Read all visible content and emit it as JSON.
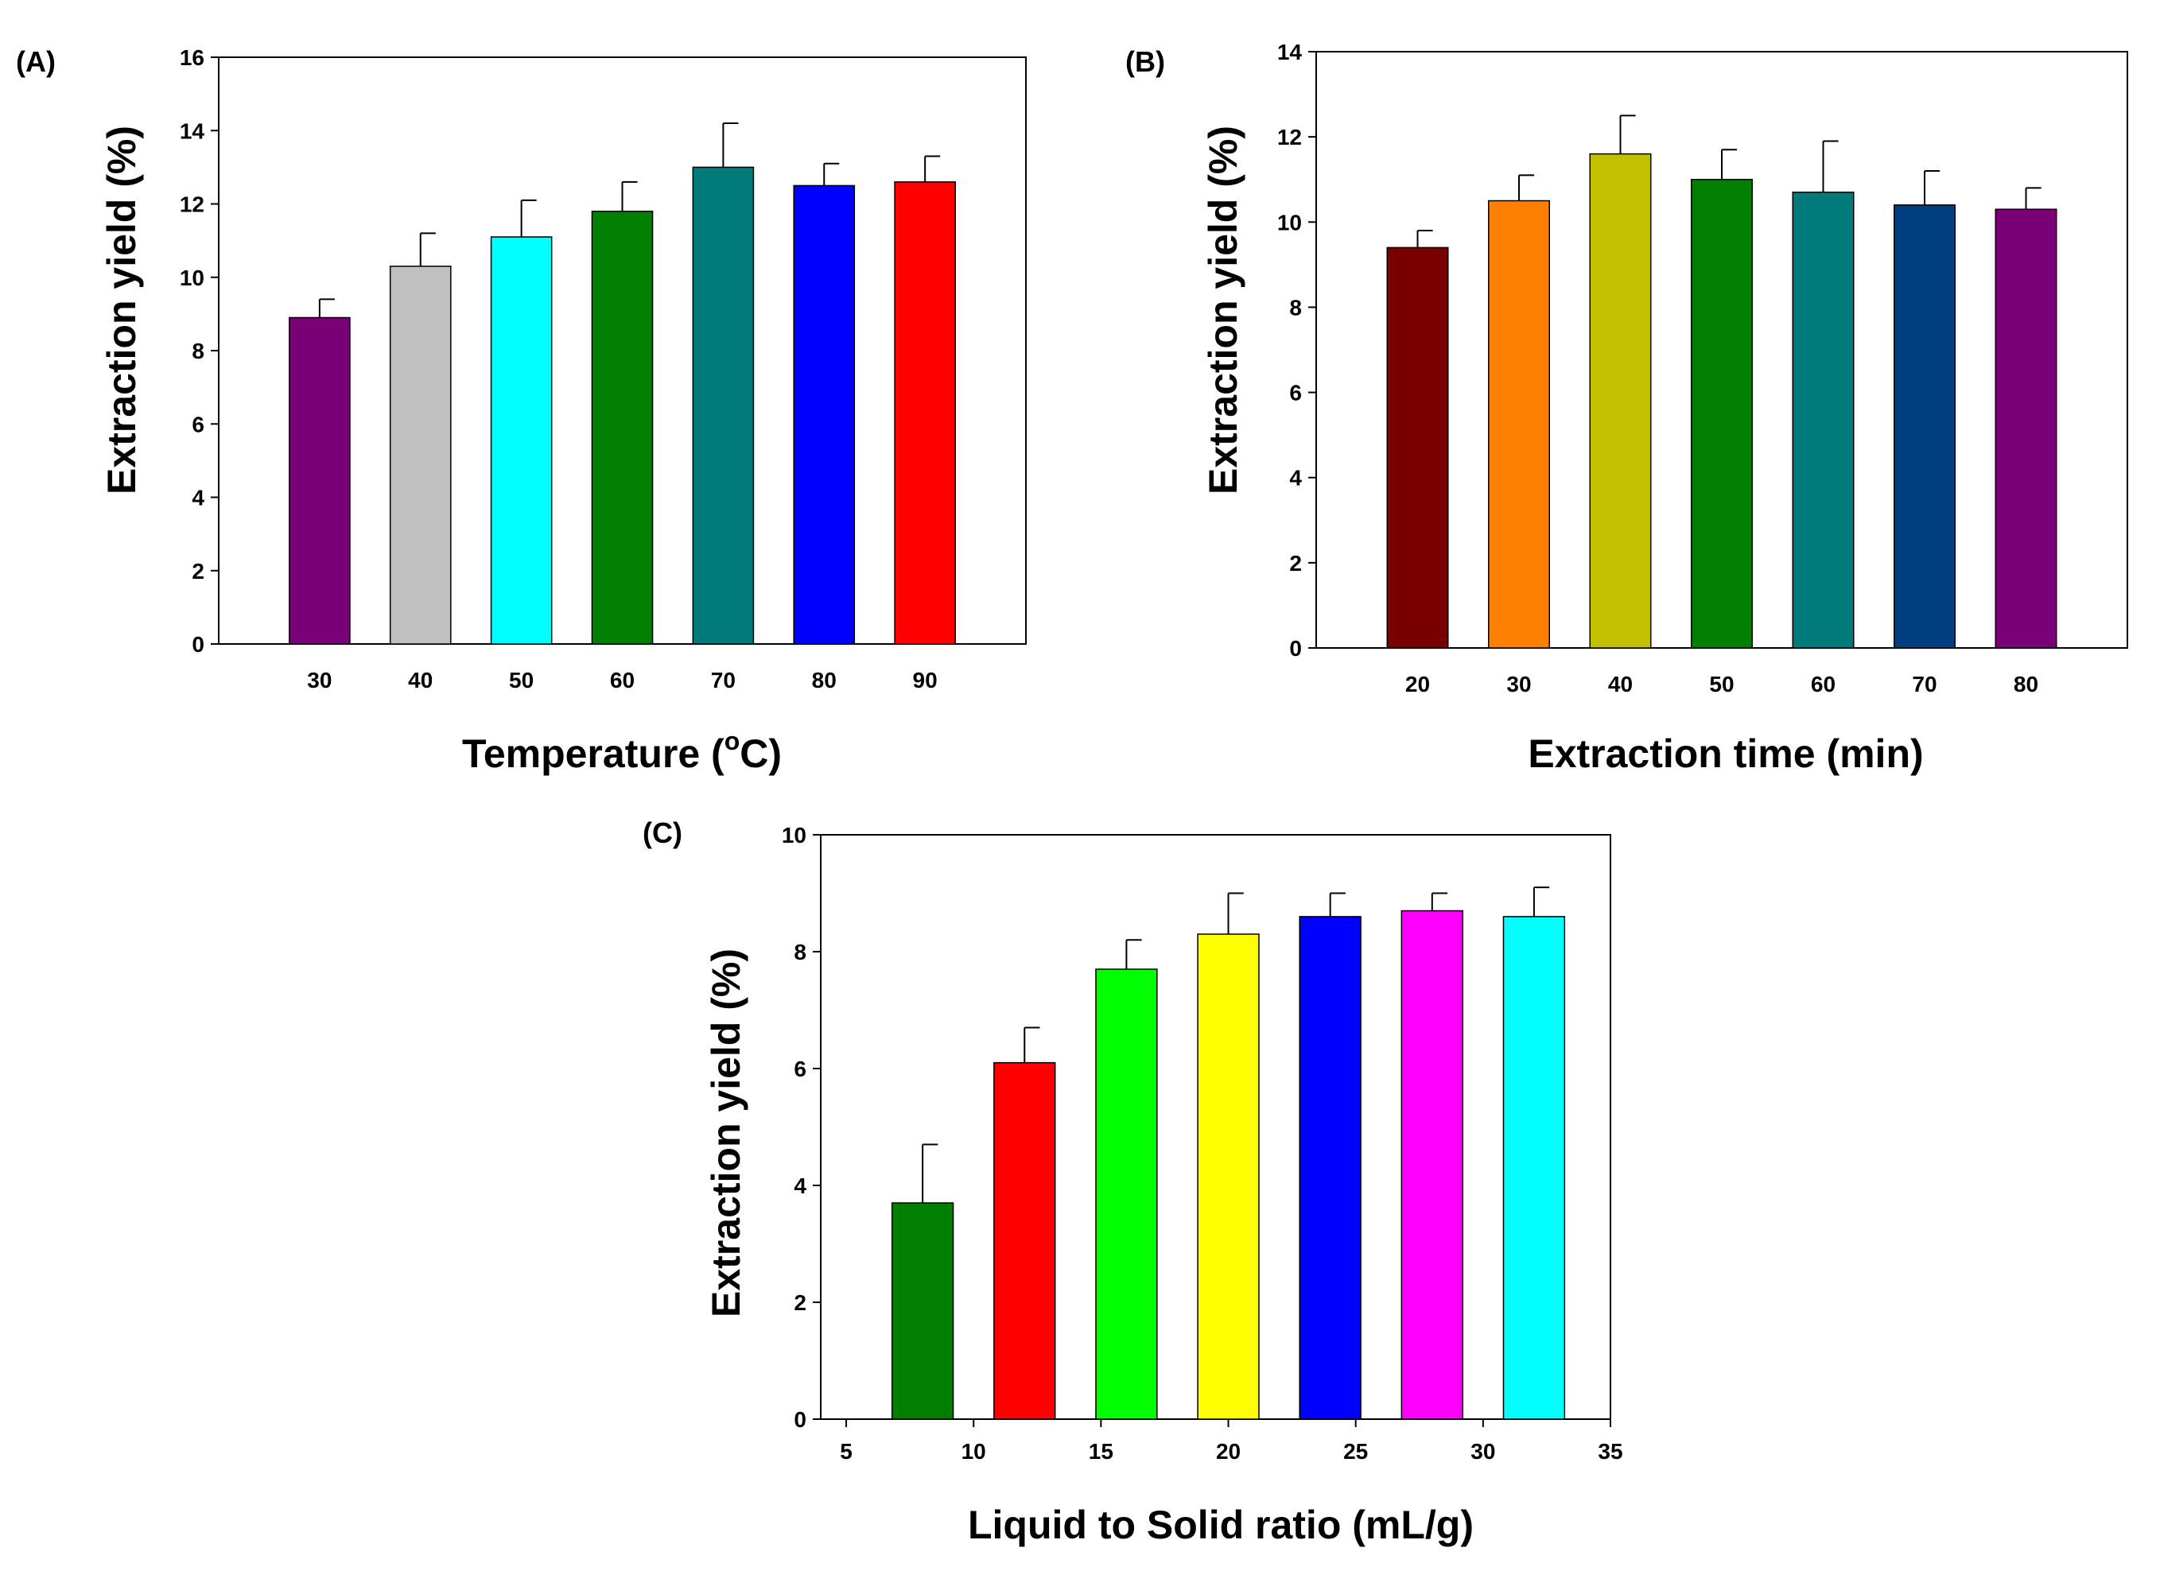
{
  "chart_data": [
    {
      "panel": "(A)",
      "type": "bar",
      "categories": [
        "30",
        "40",
        "50",
        "60",
        "70",
        "80",
        "90"
      ],
      "values": [
        8.9,
        10.3,
        11.1,
        11.8,
        13.0,
        12.5,
        12.6
      ],
      "errors": [
        0.5,
        0.9,
        1.0,
        0.8,
        1.2,
        0.6,
        0.7
      ],
      "colors": [
        "#7a0077",
        "#c0c0c0",
        "#00ffff",
        "#007f00",
        "#007b7b",
        "#0000ff",
        "#ff0000"
      ],
      "xlabel_main": "Temperature (",
      "xlabel_sup": "o",
      "xlabel_end": "C)",
      "ylabel": "Extraction yield (%)",
      "ylim": [
        0,
        16
      ],
      "yticks": [
        "0",
        "2",
        "4",
        "6",
        "8",
        "10",
        "12",
        "14",
        "16"
      ]
    },
    {
      "panel": "(B)",
      "type": "bar",
      "categories": [
        "20",
        "30",
        "40",
        "50",
        "60",
        "70",
        "80"
      ],
      "values": [
        9.4,
        10.5,
        11.6,
        11.0,
        10.7,
        10.4,
        10.3
      ],
      "errors": [
        0.4,
        0.6,
        0.9,
        0.7,
        1.2,
        0.8,
        0.5
      ],
      "colors": [
        "#7a0000",
        "#ff8000",
        "#c0c000",
        "#007f00",
        "#007b7b",
        "#003f7f",
        "#7a0077"
      ],
      "xlabel": "Extraction time (min)",
      "ylabel": "Extraction yield (%)",
      "ylim": [
        0,
        14
      ],
      "yticks": [
        "0",
        "2",
        "4",
        "6",
        "8",
        "10",
        "12",
        "14"
      ]
    },
    {
      "panel": "(C)",
      "type": "bar",
      "x": [
        8,
        12,
        16,
        20,
        24,
        28,
        32
      ],
      "values": [
        3.7,
        6.1,
        7.7,
        8.3,
        8.6,
        8.7,
        8.6
      ],
      "errors": [
        1.0,
        0.6,
        0.5,
        0.7,
        0.4,
        0.3,
        0.5
      ],
      "bar_width": 2.4,
      "colors": [
        "#007f00",
        "#ff0000",
        "#00ff00",
        "#ffff00",
        "#0000ff",
        "#ff00ff",
        "#00ffff"
      ],
      "xlabel": "Liquid to Solid ratio (mL/g)",
      "ylabel": "Extraction yield (%)",
      "xlim": [
        4,
        35
      ],
      "xticks": [
        "5",
        "10",
        "15",
        "20",
        "25",
        "30",
        "35"
      ],
      "ylim": [
        0,
        10
      ],
      "yticks": [
        "0",
        "2",
        "4",
        "6",
        "8",
        "10"
      ]
    }
  ]
}
